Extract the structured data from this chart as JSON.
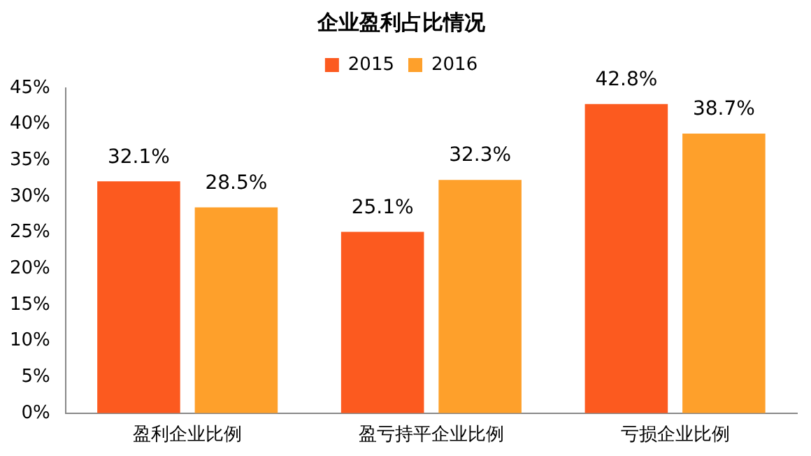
{
  "chart_data": {
    "type": "bar",
    "title": "企业盈利占比情况",
    "categories": [
      "盈利企业比例",
      "盈亏持平企业比例",
      "亏损企业比例"
    ],
    "series": [
      {
        "name": "2015",
        "color": "#fc5a1f",
        "values": [
          32.1,
          25.1,
          42.8
        ],
        "value_labels": [
          "32.1%",
          "25.1%",
          "42.8%"
        ]
      },
      {
        "name": "2016",
        "color": "#fea02b",
        "values": [
          28.5,
          32.3,
          38.7
        ],
        "value_labels": [
          "28.5%",
          "32.3%",
          "38.7%"
        ]
      }
    ],
    "ylim": [
      0,
      45
    ],
    "yticks": [
      {
        "value": 0,
        "label": "0%"
      },
      {
        "value": 5,
        "label": "5%"
      },
      {
        "value": 10,
        "label": "10%"
      },
      {
        "value": 15,
        "label": "15%"
      },
      {
        "value": 20,
        "label": "20%"
      },
      {
        "value": 25,
        "label": "25%"
      },
      {
        "value": 30,
        "label": "30%"
      },
      {
        "value": 35,
        "label": "35%"
      },
      {
        "value": 40,
        "label": "40%"
      },
      {
        "value": 45,
        "label": "45%"
      }
    ],
    "grid": false,
    "legend": "top"
  }
}
